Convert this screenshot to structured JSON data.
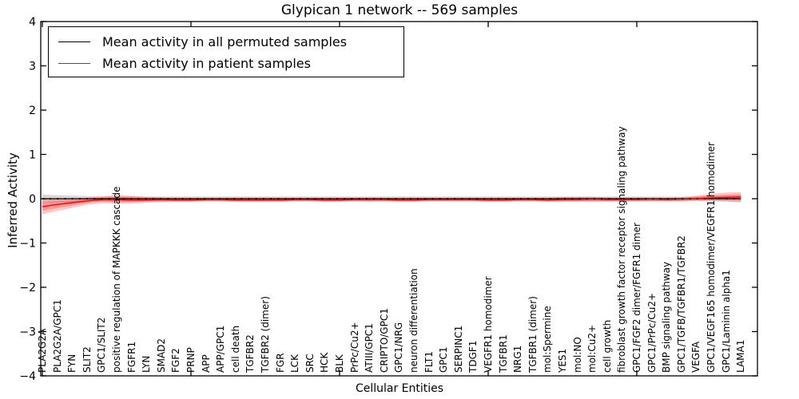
{
  "title": "Glypican 1 network -- 569 samples",
  "xlabel": "Cellular Entities",
  "ylabel": "Inferred Activity",
  "legend": [
    {
      "label": "Mean activity in all permuted samples",
      "color": "#000000"
    },
    {
      "label": "Mean activity in patient samples",
      "color": "#ff0000"
    }
  ],
  "chart_data": {
    "type": "line",
    "title": "Glypican 1 network -- 569 samples",
    "xlabel": "Cellular Entities",
    "ylabel": "Inferred Activity",
    "ylim": [
      -4,
      4
    ],
    "yticks": [
      -4,
      -3,
      -2,
      -1,
      0,
      1,
      2,
      3,
      4
    ],
    "xtick_positions": [
      0,
      10,
      20,
      30,
      40
    ],
    "grid": false,
    "legend_position": "upper left",
    "band_note": "shaded regions are uncertainty bands around each mean line",
    "categories": [
      "PLA2G2A",
      "PLA2G2A/GPC1",
      "FYN",
      "SLIT2",
      "GPC1/SLIT2",
      "positive regulation of MAPKKK cascade",
      "FGFR1",
      "LYN",
      "SMAD2",
      "FGF2",
      "PRNP",
      "APP",
      "APP/GPC1",
      "cell death",
      "TGFBR2",
      "TGFBR2 (dimer)",
      "FGR",
      "LCK",
      "SRC",
      "HCK",
      "BLK",
      "PrPc/Cu2+",
      "ATIII/GPC1",
      "CRIPTO/GPC1",
      "GPC1/NRG",
      "neuron differentiation",
      "FLT1",
      "GPC1",
      "SERPINC1",
      "TDGF1",
      "VEGFR1 homodimer",
      "TGFBR1",
      "NRG1",
      "TGFBR1 (dimer)",
      "mol:Spermine",
      "YES1",
      "mol:NO",
      "mol:Cu2+",
      "cell growth",
      "fibroblast growth factor receptor signaling pathway",
      "GPC1/FGF2 dimer/FGFR1 dimer",
      "GPC1/PrPc/Cu2+",
      "BMP signaling pathway",
      "GPC1/TGFB/TGFBR1/TGFBR2",
      "VEGFA",
      "GPC1/VEGF165 homodimer/VEGFR1 homodimer",
      "GPC1/Laminin alpha1",
      "LAMA1"
    ],
    "series": [
      {
        "name": "Mean activity in all permuted samples",
        "color": "#000000",
        "band_color": "#b0b0b0",
        "values": [
          0,
          0,
          0,
          0,
          0,
          0,
          0,
          0,
          0,
          0,
          0,
          0,
          0,
          0,
          0,
          0,
          0,
          0,
          0,
          0,
          0,
          0,
          0,
          0,
          0,
          0,
          0,
          0,
          0,
          0,
          0,
          0,
          0,
          0,
          0,
          0,
          0,
          0,
          0,
          0,
          0,
          0,
          0,
          0,
          0,
          0,
          0,
          0
        ],
        "band_hi": [
          0.09,
          0.08,
          0.07,
          0.06,
          0.05,
          0.05,
          0.05,
          0.05,
          0.05,
          0.05,
          0.05,
          0.05,
          0.05,
          0.05,
          0.05,
          0.05,
          0.05,
          0.05,
          0.05,
          0.05,
          0.05,
          0.05,
          0.05,
          0.05,
          0.05,
          0.05,
          0.05,
          0.05,
          0.05,
          0.05,
          0.05,
          0.05,
          0.05,
          0.05,
          0.05,
          0.05,
          0.05,
          0.05,
          0.05,
          0.05,
          0.05,
          0.05,
          0.05,
          0.05,
          0.05,
          0.06,
          0.06,
          0.07
        ],
        "band_lo": [
          -0.09,
          -0.08,
          -0.07,
          -0.06,
          -0.05,
          -0.05,
          -0.05,
          -0.05,
          -0.05,
          -0.05,
          -0.05,
          -0.05,
          -0.05,
          -0.05,
          -0.05,
          -0.05,
          -0.05,
          -0.05,
          -0.05,
          -0.05,
          -0.05,
          -0.05,
          -0.05,
          -0.05,
          -0.05,
          -0.05,
          -0.05,
          -0.05,
          -0.05,
          -0.05,
          -0.05,
          -0.05,
          -0.05,
          -0.05,
          -0.05,
          -0.05,
          -0.05,
          -0.05,
          -0.05,
          -0.05,
          -0.05,
          -0.05,
          -0.05,
          -0.05,
          -0.05,
          -0.06,
          -0.06,
          -0.07
        ]
      },
      {
        "name": "Mean activity in patient samples",
        "color": "#ff0000",
        "band_color": "#ff0000",
        "values": [
          -0.18,
          -0.13,
          -0.09,
          -0.05,
          -0.02,
          -0.02,
          -0.03,
          -0.03,
          -0.02,
          -0.03,
          -0.03,
          -0.02,
          -0.02,
          -0.03,
          -0.03,
          -0.03,
          -0.03,
          -0.02,
          -0.02,
          -0.03,
          -0.03,
          -0.02,
          -0.02,
          -0.02,
          -0.03,
          -0.03,
          -0.02,
          -0.02,
          -0.02,
          -0.02,
          -0.03,
          -0.03,
          -0.02,
          -0.02,
          -0.03,
          -0.02,
          -0.02,
          -0.01,
          -0.02,
          -0.02,
          -0.02,
          -0.01,
          -0.02,
          -0.01,
          0,
          0.02,
          0.03,
          0.04
        ],
        "band_hi": [
          -0.01,
          -0.01,
          0,
          0.02,
          0.05,
          0.09,
          0.07,
          0.04,
          0.03,
          0.02,
          0.02,
          0.02,
          0.02,
          0.02,
          0.02,
          0.02,
          0.02,
          0.02,
          0.02,
          0.02,
          0.02,
          0.02,
          0.03,
          0.02,
          0.02,
          0.02,
          0.02,
          0.02,
          0.02,
          0.02,
          0.02,
          0.02,
          0.02,
          0.02,
          0.02,
          0.04,
          0.04,
          0.04,
          0.03,
          0.02,
          0.03,
          0.02,
          0.02,
          0.03,
          0.07,
          0.11,
          0.14,
          0.15
        ],
        "band_lo": [
          -0.35,
          -0.28,
          -0.21,
          -0.14,
          -0.1,
          -0.11,
          -0.11,
          -0.09,
          -0.08,
          -0.07,
          -0.07,
          -0.06,
          -0.06,
          -0.07,
          -0.07,
          -0.07,
          -0.07,
          -0.06,
          -0.06,
          -0.07,
          -0.07,
          -0.06,
          -0.07,
          -0.06,
          -0.07,
          -0.07,
          -0.06,
          -0.06,
          -0.06,
          -0.06,
          -0.07,
          -0.07,
          -0.06,
          -0.06,
          -0.07,
          -0.07,
          -0.07,
          -0.07,
          -0.07,
          -0.06,
          -0.06,
          -0.06,
          -0.06,
          -0.06,
          -0.05,
          -0.05,
          -0.06,
          -0.08
        ]
      }
    ]
  }
}
